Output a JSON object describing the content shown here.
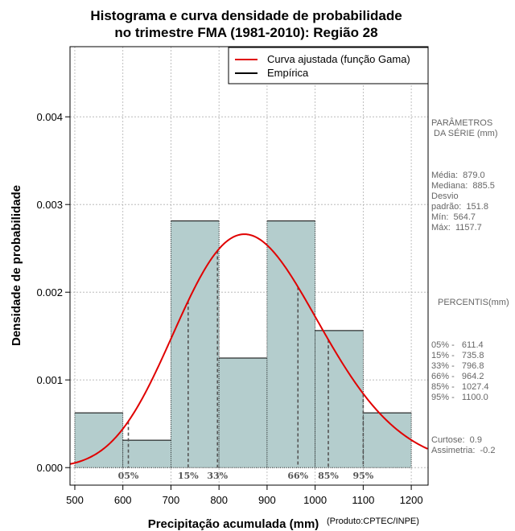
{
  "chart_data": {
    "type": "histogram",
    "title_lines": [
      "Histograma e curva densidade de probabilidade",
      "no trimestre FMA (1981-2010): Região 28"
    ],
    "xlabel": "Precipitação acumulada (mm)",
    "ylabel": "Densidade de probabilidade",
    "credit": "(Produto:CPTEC/INPE)",
    "xlim": [
      490,
      1235
    ],
    "ylim": [
      -0.0002,
      0.0048
    ],
    "x_ticks": [
      500,
      600,
      700,
      800,
      900,
      1000,
      1100,
      1200
    ],
    "x_tick_labels": [
      "500",
      "600",
      "700",
      "800",
      "900",
      "1000",
      "1100",
      "1200"
    ],
    "y_ticks": [
      0,
      0.001,
      0.002,
      0.003,
      0.004
    ],
    "y_tick_labels": [
      "0.000",
      "0.001",
      "0.002",
      "0.003",
      "0.004"
    ],
    "grid": true,
    "bins": [
      {
        "x0": 500,
        "x1": 600,
        "density": 0.000625
      },
      {
        "x0": 600,
        "x1": 700,
        "density": 0.0003125
      },
      {
        "x0": 700,
        "x1": 800,
        "density": 0.0028125
      },
      {
        "x0": 800,
        "x1": 900,
        "density": 0.00125
      },
      {
        "x0": 900,
        "x1": 1000,
        "density": 0.0028125
      },
      {
        "x0": 1000,
        "x1": 1100,
        "density": 0.0015625
      },
      {
        "x0": 1100,
        "x1": 1200,
        "density": 0.000625
      }
    ],
    "fitted_curve": {
      "name": "Curva ajustada (função Gama)",
      "distribution": "gamma",
      "mean": 879.0,
      "sd": 151.8,
      "color": "#e00000"
    },
    "percentile_lines": [
      {
        "label": "05%",
        "value": 611.4
      },
      {
        "label": "15%",
        "value": 735.8
      },
      {
        "label": "33%",
        "value": 796.8
      },
      {
        "label": "66%",
        "value": 964.2
      },
      {
        "label": "85%",
        "value": 1027.4
      },
      {
        "label": "95%",
        "value": 1100.0
      }
    ],
    "legend": [
      {
        "label": "Curva ajustada (função Gama)",
        "color": "#e00000"
      },
      {
        "label": "Empírica",
        "color": "#000000"
      }
    ],
    "legend_position": "top-right",
    "bar_fill": "#b4cdcd"
  },
  "stats_panel": {
    "params_title": "PARÂMETROS\n DA SÉRIE (mm)",
    "params_body": "Média:  879.0\nMediana:  885.5\nDesvio\npadrão:  151.8\nMín:  564.7\nMáx:  1157.7",
    "percentis_title": "PERCENTIS(mm)",
    "percentis_body": "05% -   611.4\n15% -   735.8\n33% -   796.8\n66% -   964.2\n85% -   1027.4\n95% -   1100.0",
    "shape_body": "Curtose:  0.9\nAssimetria:  -0.2"
  }
}
